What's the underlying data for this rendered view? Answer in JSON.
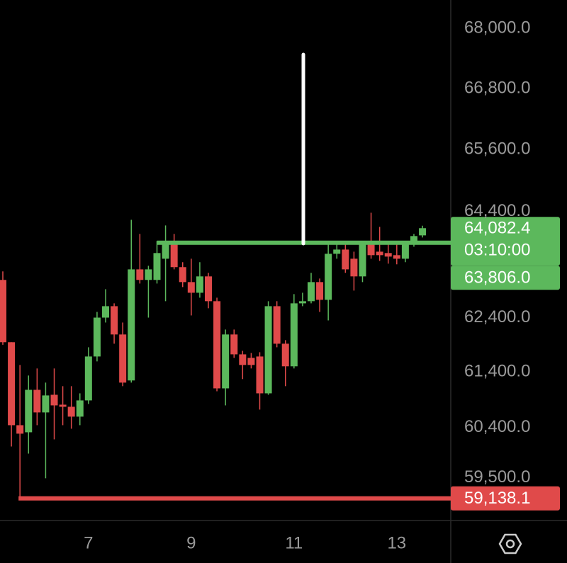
{
  "chart_data": {
    "type": "candlestick",
    "log_scale": true,
    "ylim": [
      58750,
      68580
    ],
    "yticks": [
      {
        "value": 68000,
        "label": "68,000.0"
      },
      {
        "value": 66800,
        "label": "66,800.0"
      },
      {
        "value": 65600,
        "label": "65,600.0"
      },
      {
        "value": 64400,
        "label": "64,400.0"
      },
      {
        "value": 62400,
        "label": "62,400.0"
      },
      {
        "value": 61400,
        "label": "61,400.0"
      },
      {
        "value": 60400,
        "label": "60,400.0"
      },
      {
        "value": 59500,
        "label": "59,500.0"
      }
    ],
    "categories": [
      null,
      null,
      null,
      null,
      null,
      null,
      null,
      null,
      null,
      null,
      "7",
      null,
      null,
      null,
      null,
      null,
      null,
      null,
      null,
      null,
      null,
      null,
      "9",
      null,
      null,
      null,
      null,
      null,
      null,
      null,
      null,
      null,
      null,
      null,
      "11",
      null,
      null,
      null,
      null,
      null,
      null,
      null,
      null,
      null,
      null,
      null,
      "13",
      null,
      null,
      null
    ],
    "up_color": "#5cb85c",
    "down_color": "#e04a4a",
    "open": [
      63105,
      61947,
      60438,
      60311,
      61077,
      60668,
      60987,
      60808,
      60770,
      60592,
      60885,
      61685,
      62402,
      62614,
      62090,
      61247,
      63303,
      63105,
      63105,
      63504,
      63798,
      63345,
      63064,
      62865,
      63171,
      62707,
      61103,
      62090,
      61724,
      61660,
      61685,
      61013,
      62614,
      61920,
      61505,
      62667,
      62707,
      63064,
      62733,
      63597,
      63677,
      63504,
      63171,
      63771,
      63637,
      63611,
      63571,
      63504,
      63771,
      63946
    ],
    "high": [
      63265,
      61947,
      61530,
      61337,
      61466,
      61208,
      61466,
      61143,
      61143,
      61013,
      61854,
      62508,
      62931,
      62667,
      62311,
      64243,
      63974,
      63371,
      63839,
      64135,
      63974,
      63438,
      63504,
      63438,
      63238,
      62773,
      62181,
      62181,
      61789,
      61750,
      61763,
      62707,
      62707,
      61985,
      62839,
      62865,
      63238,
      63131,
      63771,
      63839,
      63771,
      63637,
      63839,
      64378,
      64108,
      63771,
      63771,
      63839,
      63974,
      64130
    ],
    "low": [
      61900,
      60057,
      59138.1,
      59930,
      60438,
      59492,
      60184,
      60438,
      60375,
      60438,
      60821,
      61595,
      62311,
      61920,
      61143,
      61208,
      63037,
      62402,
      63037,
      62707,
      63303,
      62971,
      62442,
      62773,
      62575,
      61051,
      60795,
      61660,
      61272,
      61466,
      60719,
      60987,
      61854,
      61143,
      61466,
      62614,
      62667,
      62508,
      62350,
      63504,
      63238,
      62905,
      63064,
      63504,
      63464,
      63411,
      63398,
      63438,
      63731,
      63906
    ],
    "close": [
      61947,
      60438,
      60286,
      61077,
      60668,
      60975,
      60795,
      60770,
      60592,
      60885,
      61685,
      62402,
      62614,
      62090,
      61208,
      63303,
      63105,
      63303,
      63611,
      63771,
      63345,
      63064,
      62865,
      63171,
      62707,
      61103,
      62090,
      61724,
      61530,
      61530,
      61013,
      62614,
      61920,
      61505,
      62667,
      62707,
      63064,
      62733,
      63597,
      63677,
      63303,
      63171,
      63771,
      63571,
      63571,
      63544,
      63504,
      63771,
      63933,
      64082.4
    ],
    "current_price": {
      "value": 64082.4,
      "label": "64,082.4"
    },
    "countdown": "03:10:00",
    "price_lines": [
      {
        "value": 63806.0,
        "label": "63,806.0",
        "color": "#5cb85c"
      },
      {
        "value": 59138.1,
        "label": "59,138.1",
        "color": "#e04a4a"
      }
    ]
  }
}
